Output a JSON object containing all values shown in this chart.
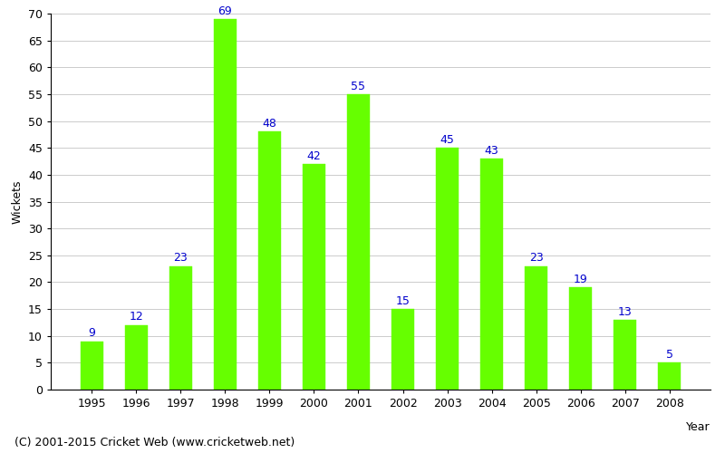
{
  "years": [
    1995,
    1996,
    1997,
    1998,
    1999,
    2000,
    2001,
    2002,
    2003,
    2004,
    2005,
    2006,
    2007,
    2008
  ],
  "wickets": [
    9,
    12,
    23,
    69,
    48,
    42,
    55,
    15,
    45,
    43,
    23,
    19,
    13,
    5
  ],
  "bar_color": "#66ff00",
  "bar_edge_color": "#66ff00",
  "label_color": "#0000cc",
  "ylabel": "Wickets",
  "ylim": [
    0,
    70
  ],
  "yticks": [
    0,
    5,
    10,
    15,
    20,
    25,
    30,
    35,
    40,
    45,
    50,
    55,
    60,
    65,
    70
  ],
  "grid_color": "#cccccc",
  "background_color": "#ffffff",
  "label_fontsize": 9,
  "axis_label_fontsize": 9,
  "tick_fontsize": 9,
  "footer_text": "(C) 2001-2015 Cricket Web (www.cricketweb.net)",
  "footer_fontsize": 9,
  "year_label": "Year"
}
